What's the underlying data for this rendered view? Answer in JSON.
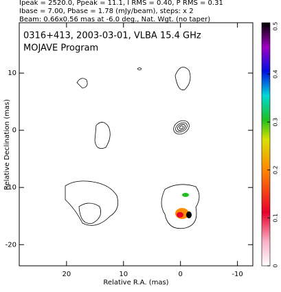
{
  "header": [
    "Ipeak = 2520.0, Ppeak = 11.1, I RMS = 0.40, P RMS = 0.31",
    "Ibase = 7.00, Pbase = 1.78 (mJy/beam), steps: x 2",
    "Beam: 0.66x0.56 mas at -6.0 deg., Nat. Wgt. (no taper)"
  ],
  "chart_data": {
    "type": "contour",
    "title": "0316+413, 2003-03-01, VLBA 15.4 GHz",
    "subtitle": "MOJAVE Program",
    "x_label": "Relative R.A. (mas)",
    "y_label": "Relative Declination (mas)",
    "xlim": [
      28.3,
      -12.7
    ],
    "xticks": [
      20,
      10,
      0,
      -10
    ],
    "ylim": [
      18.8,
      -23.7
    ],
    "yticks": [
      10,
      0,
      -10,
      -20
    ],
    "colorbar": {
      "lim": [
        0,
        0.5
      ],
      "ticks": [
        0,
        0.1,
        0.2,
        0.3,
        0.4,
        0.5
      ]
    }
  }
}
